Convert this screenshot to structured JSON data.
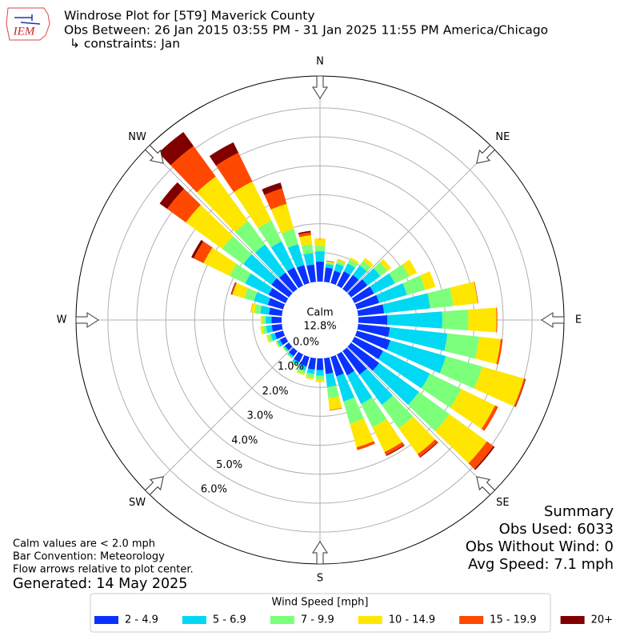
{
  "logo_text": "IEM",
  "chart_data": {
    "type": "windrose",
    "title": "Windrose Plot for [5T9] Maverick County",
    "subtitle": "Obs Between: 26 Jan 2015 03:55 PM - 31 Jan 2025 11:55 PM America/Chicago",
    "constraints": "↳ constraints: Jan",
    "calm_label": "Calm",
    "calm_value_label": "12.8%",
    "compass_labels": [
      "N",
      "NE",
      "E",
      "SE",
      "S",
      "SW",
      "W",
      "NW"
    ],
    "directions": [
      0,
      10,
      20,
      30,
      40,
      50,
      60,
      70,
      80,
      90,
      100,
      110,
      120,
      130,
      140,
      150,
      160,
      170,
      180,
      190,
      200,
      210,
      220,
      230,
      240,
      250,
      260,
      270,
      280,
      290,
      300,
      310,
      320,
      330,
      340,
      350
    ],
    "ylim": [
      0,
      7.1
    ],
    "yticks": [
      {
        "value": 0,
        "label": "0.0%"
      },
      {
        "value": 1,
        "label": "1.0%"
      },
      {
        "value": 2,
        "label": "2.0%"
      },
      {
        "value": 3,
        "label": "3.0%"
      },
      {
        "value": 4,
        "label": "4.0%"
      },
      {
        "value": 5,
        "label": "5.0%"
      },
      {
        "value": 6,
        "label": "6.0%"
      }
    ],
    "grid": true,
    "legend_title": "Wind Speed [mph]",
    "series": [
      {
        "name": "2 - 4.9",
        "color": "#0a32ff",
        "values": [
          0.69,
          0.5,
          0.45,
          0.55,
          0.6,
          0.7,
          0.75,
          0.8,
          0.9,
          1.0,
          1.1,
          1.2,
          1.1,
          1.2,
          1.0,
          0.8,
          0.7,
          0.55,
          0.4,
          0.4,
          0.35,
          0.3,
          0.22,
          0.18,
          0.22,
          0.3,
          0.35,
          0.35,
          0.45,
          0.55,
          0.65,
          0.75,
          0.7,
          0.7,
          0.65,
          0.6
        ]
      },
      {
        "name": "5 - 6.9",
        "color": "#00d8f4",
        "values": [
          0.36,
          0.12,
          0.25,
          0.3,
          0.4,
          0.55,
          0.8,
          1.0,
          1.6,
          1.9,
          2.0,
          2.0,
          1.8,
          1.7,
          1.3,
          1.1,
          0.9,
          0.45,
          0.2,
          0.15,
          0.15,
          0.1,
          0.06,
          0.05,
          0.1,
          0.15,
          0.2,
          0.2,
          0.3,
          0.5,
          0.9,
          1.2,
          1.2,
          1.0,
          0.75,
          0.4
        ]
      },
      {
        "name": "7 - 9.9",
        "color": "#7cff7a",
        "values": [
          0.19,
          0.06,
          0.1,
          0.15,
          0.2,
          0.3,
          0.55,
          0.65,
          0.8,
          0.9,
          1.1,
          1.3,
          1.2,
          1.3,
          1.0,
          0.9,
          0.8,
          0.4,
          0.13,
          0.12,
          0.1,
          0.05,
          0.04,
          0.04,
          0.05,
          0.1,
          0.12,
          0.1,
          0.2,
          0.35,
          0.6,
          0.9,
          1.0,
          0.8,
          0.55,
          0.3
        ]
      },
      {
        "name": "10 - 14.9",
        "color": "#ffe600",
        "values": [
          0.25,
          0.04,
          0.05,
          0.08,
          0.13,
          0.16,
          0.3,
          0.37,
          0.85,
          0.97,
          0.75,
          1.5,
          1.3,
          1.6,
          1.1,
          0.95,
          0.85,
          0.4,
          0.09,
          0.07,
          0.06,
          0.02,
          0.01,
          0.01,
          0.02,
          0.06,
          0.08,
          0.07,
          0.12,
          0.42,
          1.0,
          1.55,
          1.9,
          1.5,
          0.9,
          0.32
        ]
      },
      {
        "name": "15 - 19.9",
        "color": "#ff4800",
        "values": [
          0,
          0.02,
          0.01,
          0,
          0,
          0,
          0,
          0,
          0.02,
          0.03,
          0.07,
          0.05,
          0.12,
          0.28,
          0.12,
          0.12,
          0.1,
          0.02,
          0,
          0,
          0,
          0,
          0,
          0,
          0,
          0,
          0,
          0,
          0.01,
          0.04,
          0.38,
          0.8,
          1.3,
          1.1,
          0.55,
          0.1
        ]
      },
      {
        "name": "20+",
        "color": "#800000",
        "values": [
          0,
          0,
          0,
          0,
          0,
          0,
          0,
          0,
          0,
          0,
          0,
          0.02,
          0,
          0.05,
          0.03,
          0.03,
          0,
          0,
          0,
          0,
          0,
          0,
          0,
          0,
          0,
          0,
          0,
          0,
          0,
          0.02,
          0.09,
          0.32,
          0.6,
          0.4,
          0.21,
          0.05
        ]
      }
    ]
  },
  "notes": [
    "Calm values are < 2.0 mph",
    "Bar Convention: Meteorology",
    "Flow arrows relative to plot center."
  ],
  "generated": "Generated: 14 May 2025",
  "summary": [
    "Summary",
    "Obs Used: 6033",
    "Obs Without Wind: 0",
    "Avg Speed: 7.1 mph"
  ]
}
